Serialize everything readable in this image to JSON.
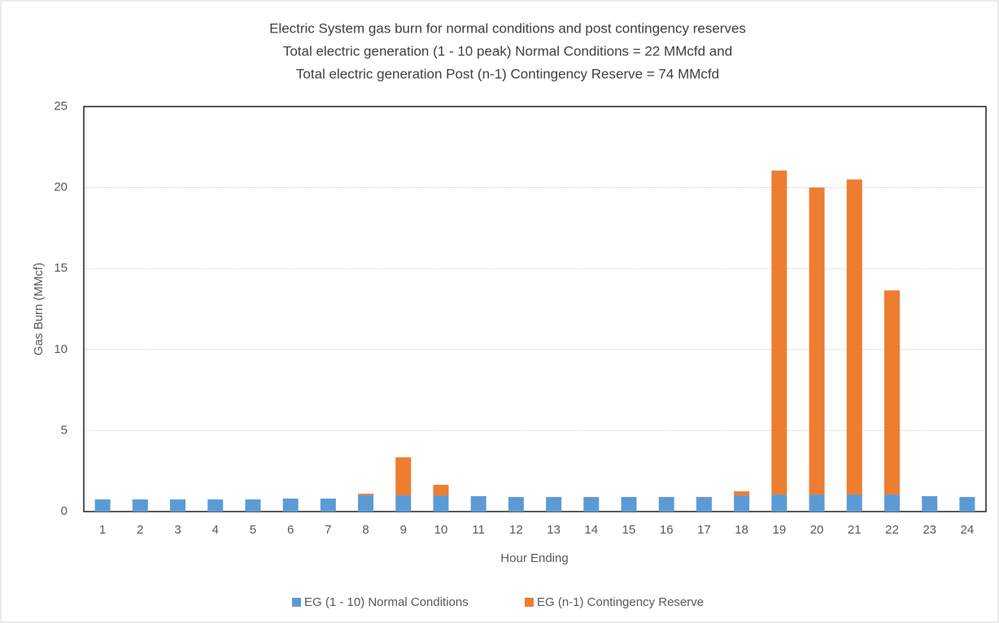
{
  "chart_data": {
    "type": "stacked_bar",
    "title": [
      "Electric System gas burn for normal conditions and post contingency reserves",
      "Total electric generation (1 - 10 peak) Normal Conditions = 22 MMcfd and",
      "Total electric generation Post (n-1) Contingency Reserve = 74 MMcfd"
    ],
    "x_label": "Hour Ending",
    "y_label": "Gas Burn (MMcf)",
    "categories": [
      "1",
      "2",
      "3",
      "4",
      "5",
      "6",
      "7",
      "8",
      "9",
      "10",
      "11",
      "12",
      "13",
      "14",
      "15",
      "16",
      "17",
      "18",
      "19",
      "20",
      "21",
      "22",
      "23",
      "24"
    ],
    "series": [
      {
        "name": "EG (1 - 10) Normal Conditions",
        "color": "#5b9bd5",
        "values": [
          0.75,
          0.75,
          0.75,
          0.75,
          0.75,
          0.8,
          0.8,
          1.0,
          1.0,
          1.0,
          0.95,
          0.9,
          0.9,
          0.9,
          0.9,
          0.9,
          0.9,
          1.0,
          1.05,
          1.05,
          1.05,
          1.05,
          0.95,
          0.9
        ]
      },
      {
        "name": "EG (n-1) Contingency Reserve",
        "color": "#ed7d31",
        "values": [
          0,
          0,
          0,
          0,
          0,
          0,
          0,
          0.1,
          2.35,
          0.65,
          0,
          0,
          0,
          0,
          0,
          0,
          0,
          0.25,
          20.0,
          18.95,
          19.45,
          12.6,
          0,
          0
        ]
      }
    ],
    "ylim": [
      0,
      25
    ],
    "yticks": [
      0,
      5,
      10,
      15,
      20,
      25
    ],
    "grid": true,
    "legend": "bottom"
  }
}
